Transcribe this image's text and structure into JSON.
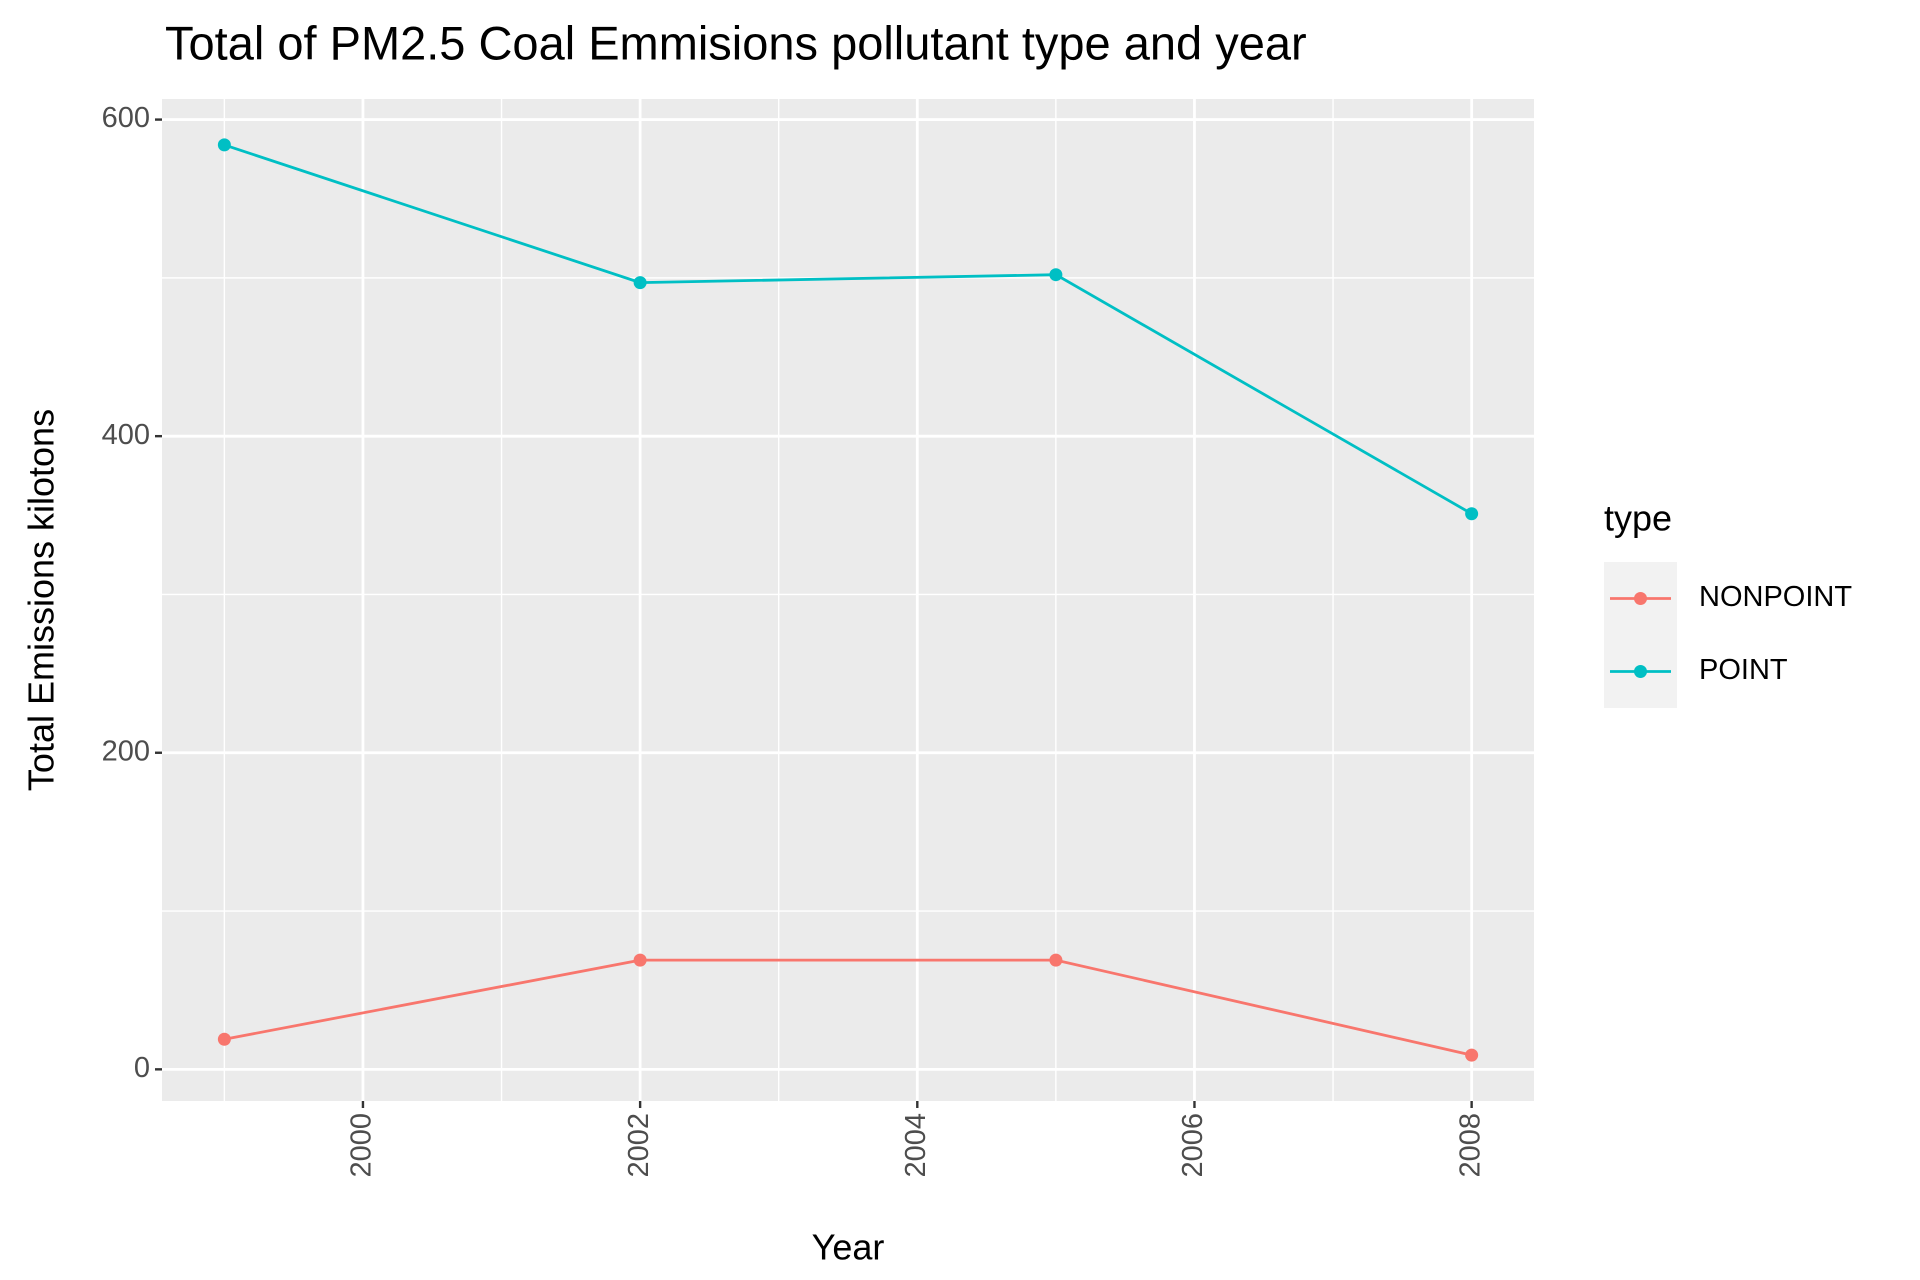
{
  "chart_data": {
    "type": "line",
    "title": "Total of PM2.5 Coal Emmisions pollutant type and year",
    "x_label": "Year",
    "y_label": "Total Emissions kilotons",
    "x": [
      1999,
      2002,
      2005,
      2008
    ],
    "series": [
      {
        "name": "NONPOINT",
        "color": "#F8766D",
        "values": [
          19,
          69,
          69,
          9
        ]
      },
      {
        "name": "POINT",
        "color": "#00BFC4",
        "values": [
          584,
          497,
          502,
          351
        ]
      }
    ],
    "xlim": [
      1998.55,
      2008.45
    ],
    "xticks": [
      2000,
      2002,
      2004,
      2006,
      2008
    ],
    "xminor": [
      1999,
      2001,
      2003,
      2005,
      2007
    ],
    "ylim": [
      -20,
      613
    ],
    "yticks": [
      0,
      200,
      400,
      600
    ],
    "yminor": [
      100,
      300,
      500
    ],
    "grid": true,
    "legend_title": "type",
    "legend_position": "right"
  }
}
